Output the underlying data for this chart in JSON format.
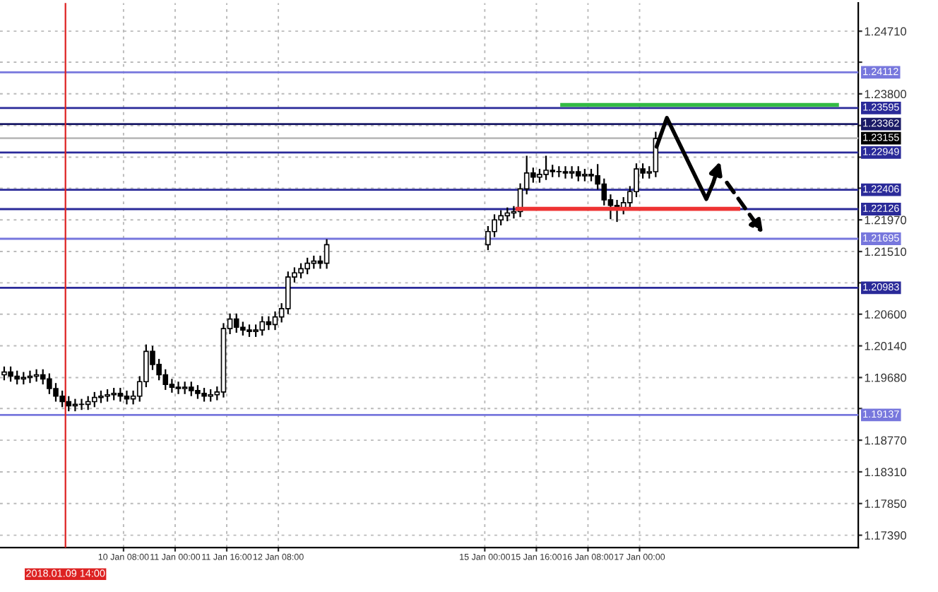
{
  "chart_data": {
    "type": "candlestick",
    "x": [
      "2018-01-08T19:00",
      "2018-01-08T21:00",
      "2018-01-08T23:00",
      "2018-01-09T01:00",
      "2018-01-09T03:00",
      "2018-01-09T05:00",
      "2018-01-09T07:00",
      "2018-01-09T09:00",
      "2018-01-09T11:00",
      "2018-01-09T13:00",
      "2018-01-09T15:00",
      "2018-01-09T17:00",
      "2018-01-09T19:00",
      "2018-01-09T21:00",
      "2018-01-09T23:00",
      "2018-01-10T01:00",
      "2018-01-10T03:00",
      "2018-01-10T05:00",
      "2018-01-10T07:00",
      "2018-01-10T09:00",
      "2018-01-10T11:00",
      "2018-01-10T13:00",
      "2018-01-10T15:00",
      "2018-01-10T17:00",
      "2018-01-10T19:00",
      "2018-01-10T21:00",
      "2018-01-10T23:00",
      "2018-01-11T01:00",
      "2018-01-11T03:00",
      "2018-01-11T05:00",
      "2018-01-11T07:00",
      "2018-01-11T09:00",
      "2018-01-11T11:00",
      "2018-01-11T13:00",
      "2018-01-11T15:00",
      "2018-01-11T17:00",
      "2018-01-11T19:00",
      "2018-01-11T21:00",
      "2018-01-11T23:00",
      "2018-01-12T01:00",
      "2018-01-12T03:00",
      "2018-01-12T05:00",
      "2018-01-12T07:00",
      "2018-01-12T09:00",
      "2018-01-12T11:00",
      "2018-01-12T13:00",
      "2018-01-12T15:00",
      "2018-01-12T17:00",
      "2018-01-12T19:00",
      "2018-01-12T21:00",
      "2018-01-12T23:00",
      "2018-01-15T01:00",
      "2018-01-15T03:00",
      "2018-01-15T05:00",
      "2018-01-15T07:00",
      "2018-01-15T09:00",
      "2018-01-15T11:00",
      "2018-01-15T13:00",
      "2018-01-15T15:00",
      "2018-01-15T17:00",
      "2018-01-15T19:00",
      "2018-01-15T21:00",
      "2018-01-15T23:00",
      "2018-01-16T01:00",
      "2018-01-16T03:00",
      "2018-01-16T05:00",
      "2018-01-16T07:00",
      "2018-01-16T09:00",
      "2018-01-16T11:00",
      "2018-01-16T13:00",
      "2018-01-16T15:00",
      "2018-01-16T17:00",
      "2018-01-16T19:00",
      "2018-01-16T21:00",
      "2018-01-16T23:00",
      "2018-01-17T01:00",
      "2018-01-17T03:00",
      "2018-01-17T05:00"
    ],
    "ohlc": [
      [
        1.1972,
        1.1984,
        1.1964,
        1.1976
      ],
      [
        1.1976,
        1.1984,
        1.1962,
        1.197
      ],
      [
        1.197,
        1.1978,
        1.1958,
        1.1966
      ],
      [
        1.1966,
        1.1976,
        1.1958,
        1.1968
      ],
      [
        1.1968,
        1.1978,
        1.196,
        1.197
      ],
      [
        1.197,
        1.198,
        1.1962,
        1.1972
      ],
      [
        1.1972,
        1.198,
        1.1958,
        1.1966
      ],
      [
        1.1966,
        1.1974,
        1.1944,
        1.1952
      ],
      [
        1.1952,
        1.196,
        1.1933,
        1.1941
      ],
      [
        1.1941,
        1.1949,
        1.1925,
        1.1933
      ],
      [
        1.1933,
        1.1941,
        1.1919,
        1.1927
      ],
      [
        1.1927,
        1.1937,
        1.1919,
        1.1929
      ],
      [
        1.1929,
        1.1937,
        1.1921,
        1.1929
      ],
      [
        1.1929,
        1.1941,
        1.1921,
        1.1933
      ],
      [
        1.1933,
        1.1947,
        1.1925,
        1.1939
      ],
      [
        1.1939,
        1.1949,
        1.1931,
        1.1941
      ],
      [
        1.1941,
        1.1951,
        1.1933,
        1.1943
      ],
      [
        1.1943,
        1.1953,
        1.1935,
        1.1945
      ],
      [
        1.1945,
        1.1953,
        1.1933,
        1.1941
      ],
      [
        1.1941,
        1.1949,
        1.1929,
        1.1937
      ],
      [
        1.1937,
        1.1949,
        1.1929,
        1.1941
      ],
      [
        1.1941,
        1.197,
        1.1933,
        1.1962
      ],
      [
        1.1962,
        1.2016,
        1.1954,
        1.2006
      ],
      [
        1.2006,
        1.2014,
        1.1979,
        1.1987
      ],
      [
        1.1987,
        1.1995,
        1.1964,
        1.1972
      ],
      [
        1.1972,
        1.198,
        1.195,
        1.1958
      ],
      [
        1.1958,
        1.1966,
        1.1946,
        1.1954
      ],
      [
        1.1954,
        1.1962,
        1.1944,
        1.1952
      ],
      [
        1.1952,
        1.1962,
        1.1944,
        1.1954
      ],
      [
        1.1954,
        1.1962,
        1.1941,
        1.1949
      ],
      [
        1.1949,
        1.1957,
        1.1937,
        1.1945
      ],
      [
        1.1945,
        1.1953,
        1.1933,
        1.1941
      ],
      [
        1.1941,
        1.1951,
        1.1933,
        1.1943
      ],
      [
        1.1943,
        1.1955,
        1.1935,
        1.1947
      ],
      [
        1.1947,
        1.2047,
        1.1939,
        1.2039
      ],
      [
        1.2039,
        1.2061,
        1.2031,
        1.2053
      ],
      [
        1.2053,
        1.2061,
        1.2033,
        1.2041
      ],
      [
        1.2041,
        1.2049,
        1.2029,
        1.2037
      ],
      [
        1.2037,
        1.2045,
        1.2027,
        1.2035
      ],
      [
        1.2035,
        1.2045,
        1.2027,
        1.2037
      ],
      [
        1.2037,
        1.2057,
        1.2029,
        1.2049
      ],
      [
        1.2049,
        1.2057,
        1.2037,
        1.2045
      ],
      [
        1.2045,
        1.2064,
        1.2037,
        1.2056
      ],
      [
        1.2056,
        1.2076,
        1.2048,
        1.2068
      ],
      [
        1.2068,
        1.2122,
        1.206,
        1.2114
      ],
      [
        1.2114,
        1.2128,
        1.2106,
        1.212
      ],
      [
        1.212,
        1.2134,
        1.2112,
        1.2126
      ],
      [
        1.2126,
        1.2142,
        1.2118,
        1.2134
      ],
      [
        1.2134,
        1.2145,
        1.2126,
        1.2137
      ],
      [
        1.2137,
        1.2145,
        1.2126,
        1.2134
      ],
      [
        1.2134,
        1.2169,
        1.2126,
        1.2161
      ],
      [
        1.2161,
        1.2188,
        1.2153,
        1.218
      ],
      [
        1.218,
        1.2205,
        1.2172,
        1.2197
      ],
      [
        1.2197,
        1.2211,
        1.2189,
        1.2203
      ],
      [
        1.2203,
        1.2215,
        1.2195,
        1.2207
      ],
      [
        1.2207,
        1.2217,
        1.2199,
        1.2209
      ],
      [
        1.2209,
        1.225,
        1.2201,
        1.2242
      ],
      [
        1.2242,
        1.229,
        1.2234,
        1.2265
      ],
      [
        1.2265,
        1.2273,
        1.2251,
        1.2259
      ],
      [
        1.2259,
        1.2271,
        1.2251,
        1.2263
      ],
      [
        1.2263,
        1.229,
        1.2255,
        1.2269
      ],
      [
        1.2269,
        1.2277,
        1.2259,
        1.2267
      ],
      [
        1.2267,
        1.2275,
        1.2259,
        1.2267
      ],
      [
        1.2267,
        1.2275,
        1.2257,
        1.2265
      ],
      [
        1.2265,
        1.2275,
        1.2257,
        1.2267
      ],
      [
        1.2267,
        1.2275,
        1.2253,
        1.2261
      ],
      [
        1.2261,
        1.2271,
        1.2253,
        1.2263
      ],
      [
        1.2263,
        1.2271,
        1.2253,
        1.2261
      ],
      [
        1.2261,
        1.2278,
        1.2241,
        1.2249
      ],
      [
        1.2249,
        1.2257,
        1.2218,
        1.2226
      ],
      [
        1.2226,
        1.2234,
        1.2198,
        1.2218
      ],
      [
        1.2218,
        1.2226,
        1.2194,
        1.2213
      ],
      [
        1.2213,
        1.223,
        1.2205,
        1.2222
      ],
      [
        1.2222,
        1.2246,
        1.2214,
        1.2238
      ],
      [
        1.2238,
        1.2279,
        1.223,
        1.2271
      ],
      [
        1.2271,
        1.2279,
        1.2257,
        1.2265
      ],
      [
        1.2265,
        1.2275,
        1.2257,
        1.2267
      ],
      [
        1.2267,
        1.2325,
        1.2259,
        1.2315
      ]
    ],
    "series": [
      {
        "type": "line",
        "color": "#33bb44",
        "x": [
          "2018-01-16T00:00",
          "2018-01-19T13:12"
        ],
        "values": [
          1.2364,
          1.2364
        ]
      },
      {
        "type": "line",
        "color": "#ee3333",
        "x": [
          "2018-01-15T10:06",
          "2018-01-18T06:36"
        ],
        "values": [
          1.2213,
          1.2213
        ]
      }
    ],
    "xlim": [
      "2018-01-08T17:42",
      "2018-01-19T19:48"
    ],
    "xticks": [
      {
        "value": "2018-01-10T08:00",
        "label": "10 Jan 08:00"
      },
      {
        "value": "2018-01-11T00:00",
        "label": "11 Jan 00:00"
      },
      {
        "value": "2018-01-11T16:00",
        "label": "11 Jan 16:00"
      },
      {
        "value": "2018-01-12T08:00",
        "label": "12 Jan 08:00"
      },
      {
        "value": "2018-01-15T00:00",
        "label": "15 Jan 00:00"
      },
      {
        "value": "2018-01-15T16:00",
        "label": "15 Jan 16:00"
      },
      {
        "value": "2018-01-16T08:00",
        "label": "16 Jan 08:00"
      },
      {
        "value": "2018-01-17T00:00",
        "label": "17 Jan 00:00"
      }
    ],
    "ylim": [
      1.1721,
      1.2512
    ],
    "yticks": [
      {
        "value": 1.1739,
        "label": "1.17390"
      },
      {
        "value": 1.1785,
        "label": "1.17850"
      },
      {
        "value": 1.1831,
        "label": "1.18310"
      },
      {
        "value": 1.1877,
        "label": "1.18770"
      },
      {
        "value": 1.1923,
        "label": null
      },
      {
        "value": 1.1968,
        "label": "1.19680"
      },
      {
        "value": 1.2014,
        "label": "1.20140"
      },
      {
        "value": 1.206,
        "label": "1.20600"
      },
      {
        "value": 1.21055,
        "label": null
      },
      {
        "value": 1.2151,
        "label": "1.21510"
      },
      {
        "value": 1.2197,
        "label": "1.21970"
      },
      {
        "value": 1.2243,
        "label": null
      },
      {
        "value": 1.2288,
        "label": null
      },
      {
        "value": 1.2334,
        "label": null
      },
      {
        "value": 1.238,
        "label": "1.23800"
      },
      {
        "value": 1.2426,
        "label": null
      },
      {
        "value": 1.2471,
        "label": "1.24710"
      }
    ],
    "ref_lines": [
      {
        "axis": "y",
        "value": 1.24112,
        "label": "1.24112",
        "color": "#7777dd"
      },
      {
        "axis": "y",
        "value": 1.23595,
        "label": "1.23595",
        "color": "#2a2a99"
      },
      {
        "axis": "y",
        "value": 1.23362,
        "label": "1.23362",
        "color": "#1a1a66"
      },
      {
        "axis": "y",
        "value": 1.23155,
        "label": "1.23155",
        "color": "#bbbbbb"
      },
      {
        "axis": "y",
        "value": 1.22949,
        "label": "1.22949",
        "color": "#2a2a99"
      },
      {
        "axis": "y",
        "value": 1.22406,
        "label": "1.22406",
        "color": "#2a2a99"
      },
      {
        "axis": "y",
        "value": 1.22126,
        "label": "1.22126",
        "color": "#2a2a99"
      },
      {
        "axis": "y",
        "value": 1.21695,
        "label": "1.21695",
        "color": "#7777dd"
      },
      {
        "axis": "y",
        "value": 1.20983,
        "label": "1.20983",
        "color": "#2a2a99"
      },
      {
        "axis": "y",
        "value": 1.19137,
        "label": "1.19137",
        "color": "#7777dd"
      },
      {
        "axis": "x",
        "value": "2018-01-09T14:00",
        "label": "2018.01.09 14:00",
        "color": "#dd2222"
      }
    ],
    "grid": true,
    "legend": false
  }
}
